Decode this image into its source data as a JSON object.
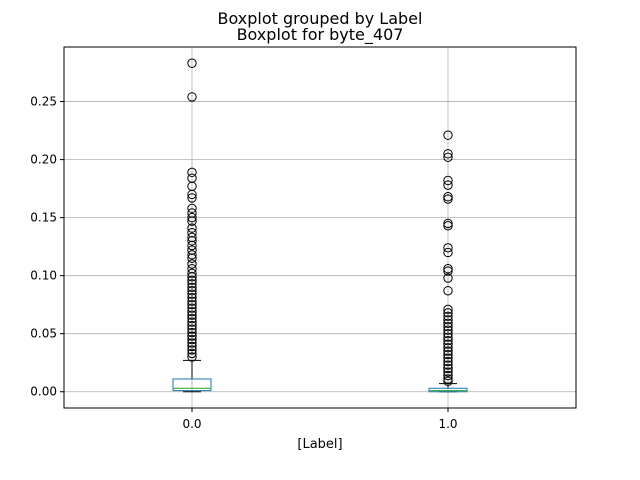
{
  "chart_data": {
    "type": "boxplot",
    "suptitle": "Boxplot grouped by Label",
    "title": "Boxplot for byte_407",
    "xlabel": "[Label]",
    "ylabel": "",
    "ylim": [
      -0.014,
      0.297
    ],
    "yticks": [
      0.0,
      0.05,
      0.1,
      0.15,
      0.2,
      0.25
    ],
    "ytick_labels": [
      "0.00",
      "0.05",
      "0.10",
      "0.15",
      "0.20",
      "0.25"
    ],
    "grid": true,
    "categories": [
      "0.0",
      "1.0"
    ],
    "groups": [
      {
        "category": "0.0",
        "whisker_low": 0.0,
        "q1": 0.001,
        "median": 0.003,
        "q3": 0.011,
        "whisker_high": 0.027,
        "outliers": [
          0.283,
          0.254,
          0.189,
          0.184,
          0.177,
          0.17,
          0.167,
          0.158,
          0.154,
          0.15,
          0.147,
          0.141,
          0.137,
          0.133,
          0.13,
          0.126,
          0.122,
          0.118,
          0.115,
          0.11,
          0.106,
          0.102,
          0.099,
          0.096,
          0.093,
          0.09,
          0.087,
          0.084,
          0.081,
          0.078,
          0.075,
          0.072,
          0.069,
          0.066,
          0.063,
          0.06,
          0.057,
          0.054,
          0.051,
          0.048,
          0.045,
          0.042,
          0.039,
          0.036,
          0.033,
          0.03
        ]
      },
      {
        "category": "1.0",
        "whisker_low": 0.0,
        "q1": 0.0,
        "median": 0.001,
        "q3": 0.003,
        "whisker_high": 0.007,
        "outliers": [
          0.221,
          0.205,
          0.202,
          0.182,
          0.178,
          0.168,
          0.166,
          0.145,
          0.143,
          0.124,
          0.12,
          0.106,
          0.104,
          0.098,
          0.087,
          0.071,
          0.068,
          0.065,
          0.062,
          0.059,
          0.056,
          0.053,
          0.05,
          0.047,
          0.044,
          0.041,
          0.038,
          0.035,
          0.032,
          0.029,
          0.026,
          0.023,
          0.02,
          0.017,
          0.014,
          0.011,
          0.009
        ]
      }
    ],
    "colors": {
      "box": "#1f77b4",
      "median": "#2ca02c",
      "whisker": "#000000",
      "grid": "#b0b0b0",
      "axes": "#000000"
    }
  }
}
